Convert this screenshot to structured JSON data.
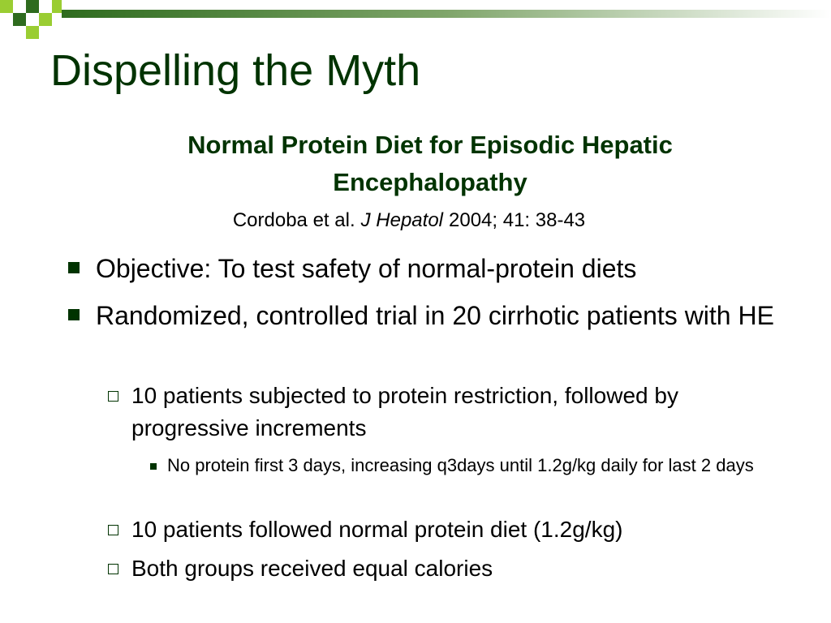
{
  "title": "Dispelling the Myth",
  "subtitle": "Normal Protein Diet for Episodic Hepatic Encephalopathy",
  "citation": {
    "authors": "Cordoba et al.",
    "journal": "J Hepatol",
    "details": "2004; 41: 38-43"
  },
  "bullets": [
    {
      "text": "Objective: To test safety of normal-protein diets"
    },
    {
      "text": "Randomized, controlled trial in 20 cirrhotic patients with HE",
      "sub": [
        {
          "text": "10 patients subjected to protein restriction, followed by progressive increments",
          "sub": [
            {
              "text": "No protein first 3 days, increasing q3days until 1.2g/kg daily for last 2 days"
            }
          ]
        },
        {
          "text": "10 patients followed normal protein diet (1.2g/kg)"
        },
        {
          "text": "Both groups received equal calories"
        }
      ]
    }
  ]
}
